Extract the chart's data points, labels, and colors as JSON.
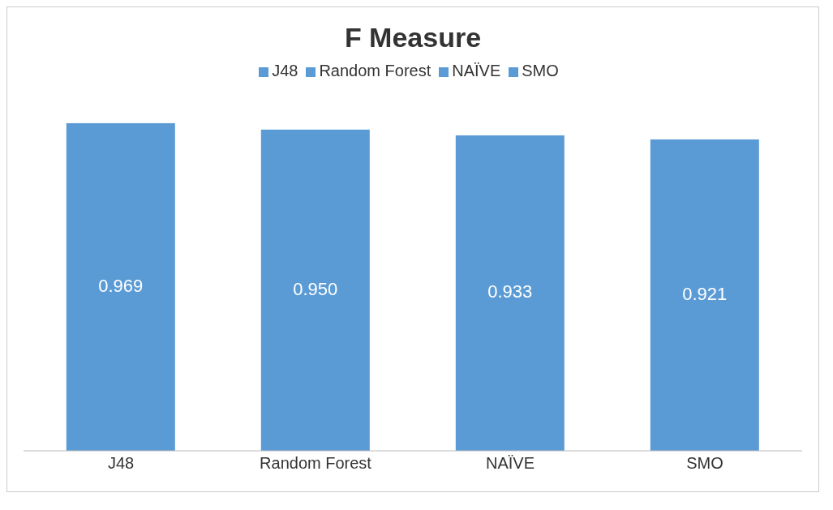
{
  "chart_data": {
    "type": "bar",
    "title": "F Measure",
    "categories": [
      "J48",
      "Random Forest",
      "NAÏVE",
      "SMO"
    ],
    "stacked": true,
    "series": [
      {
        "name": "J48",
        "color": "#5b9bd5",
        "values": [
          0.969,
          null,
          null,
          null
        ],
        "value_labels": [
          "0.969",
          null,
          null,
          null
        ]
      },
      {
        "name": "Random Forest",
        "color": "#5b9bd5",
        "values": [
          null,
          0.95,
          null,
          null
        ],
        "value_labels": [
          null,
          "0.950",
          null,
          null
        ]
      },
      {
        "name": "NAÏVE",
        "color": "#5b9bd5",
        "values": [
          null,
          null,
          0.933,
          null
        ],
        "value_labels": [
          null,
          null,
          "0.933",
          null
        ]
      },
      {
        "name": "SMO",
        "color": "#5b9bd5",
        "values": [
          null,
          null,
          null,
          0.921
        ],
        "value_labels": [
          null,
          null,
          null,
          "0.921"
        ]
      }
    ],
    "legend": "top"
  }
}
